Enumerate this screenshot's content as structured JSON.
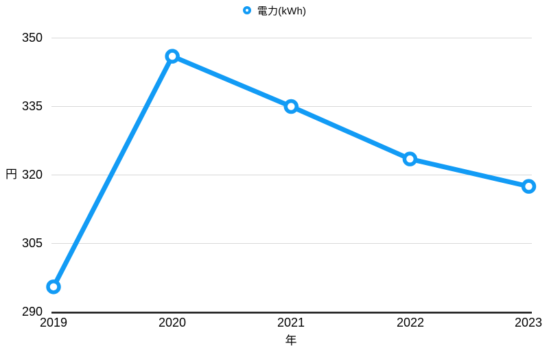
{
  "chart_data": {
    "type": "line",
    "legend": {
      "label": "電力(kWh)",
      "position": "top-center",
      "marker": "open-circle"
    },
    "xlabel": "年",
    "ylabel": "円",
    "categories": [
      "2019",
      "2020",
      "2021",
      "2022",
      "2023"
    ],
    "series": [
      {
        "name": "電力(kWh)",
        "values": [
          295.5,
          346,
          335,
          323.5,
          317.5
        ]
      }
    ],
    "ylim": [
      290,
      350
    ],
    "yticks_desc": [
      350,
      335,
      320,
      305,
      290
    ],
    "grid": true,
    "colors": {
      "line": "#129bf5",
      "marker_fill": "#ffffff",
      "grid": "#d8d8d8",
      "axis": "#111111",
      "text": "#000000",
      "background": "#ffffff"
    }
  }
}
